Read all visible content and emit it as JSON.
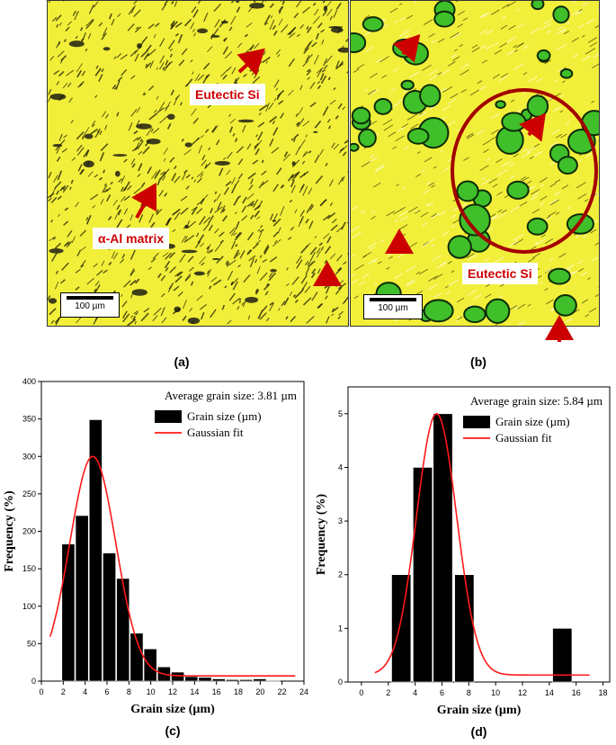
{
  "panels": {
    "a": {
      "caption": "(a)",
      "label_eutectic": "Eutectic Si",
      "label_matrix": "α-Al matrix",
      "scale_bar": "100 µm"
    },
    "b": {
      "caption": "(b)",
      "label_eutectic": "Eutectic Si",
      "scale_bar": "100 µm"
    }
  },
  "colors": {
    "micrograph_yellow": "#f2ef3a",
    "micrograph_green": "#3fbf2a",
    "arrow_red": "#cc0000",
    "circle_red": "#a30000",
    "bar_fill": "#000000",
    "fit_line": "#ff1a1a"
  },
  "chart_data": [
    {
      "type": "bar",
      "caption": "(c)",
      "xlabel": "Grain size (µm)",
      "ylabel": "Frequency (%)",
      "annotation": "Average grain size: 3.81 µm",
      "xlim": [
        0,
        24
      ],
      "ylim": [
        0,
        400
      ],
      "xticks": [
        "0",
        "2",
        "4",
        "6",
        "8",
        "10",
        "12",
        "14",
        "16",
        "18",
        "20",
        "22",
        "24"
      ],
      "yticks": [
        "0",
        "50",
        "100",
        "150",
        "200",
        "250",
        "300",
        "350",
        "400"
      ],
      "bin_width": 1.25,
      "bins": [
        {
          "x": 2.5,
          "value": 183
        },
        {
          "x": 3.75,
          "value": 221
        },
        {
          "x": 5.0,
          "value": 349
        },
        {
          "x": 6.25,
          "value": 171
        },
        {
          "x": 7.5,
          "value": 137
        },
        {
          "x": 8.75,
          "value": 64
        },
        {
          "x": 10.0,
          "value": 43
        },
        {
          "x": 11.25,
          "value": 19
        },
        {
          "x": 12.5,
          "value": 12
        },
        {
          "x": 13.75,
          "value": 6
        },
        {
          "x": 15.0,
          "value": 5
        },
        {
          "x": 16.25,
          "value": 3
        },
        {
          "x": 17.5,
          "value": 2
        },
        {
          "x": 18.75,
          "value": 2
        },
        {
          "x": 20.0,
          "value": 3
        },
        {
          "x": 21.25,
          "value": 1
        }
      ],
      "fit": {
        "mean": 4.7,
        "sigma": 2.1,
        "peak": 300,
        "baseline": 7,
        "x_start": 0.8,
        "x_end": 23.2
      },
      "legend": [
        {
          "label": "Grain size (µm)",
          "kind": "bar"
        },
        {
          "label": "Gaussian fit",
          "kind": "line"
        }
      ],
      "legend_position": "top-right"
    },
    {
      "type": "bar",
      "caption": "(d)",
      "xlabel": "Grain size (µm)",
      "ylabel": "Frequency (%)",
      "annotation": "Average grain size: 5.84 µm",
      "xlim": [
        -1,
        18.5
      ],
      "ylim": [
        0,
        5.5
      ],
      "xticks": [
        "0",
        "2",
        "4",
        "6",
        "8",
        "10",
        "12",
        "14",
        "16",
        "18"
      ],
      "yticks": [
        "0",
        "1",
        "2",
        "3",
        "4",
        "5"
      ],
      "bin_width": 1.5,
      "bins": [
        {
          "x": 3.0,
          "value": 2
        },
        {
          "x": 4.6,
          "value": 4
        },
        {
          "x": 6.1,
          "value": 5
        },
        {
          "x": 7.7,
          "value": 2
        },
        {
          "x": 15.0,
          "value": 1
        }
      ],
      "fit": {
        "mean": 5.6,
        "sigma": 1.5,
        "peak": 5.0,
        "baseline": 0.13,
        "x_start": 1.0,
        "x_end": 17.0
      },
      "legend": [
        {
          "label": "Grain size (µm)",
          "kind": "bar"
        },
        {
          "label": "Gaussian fit",
          "kind": "line"
        }
      ],
      "legend_position": "top-right"
    }
  ]
}
